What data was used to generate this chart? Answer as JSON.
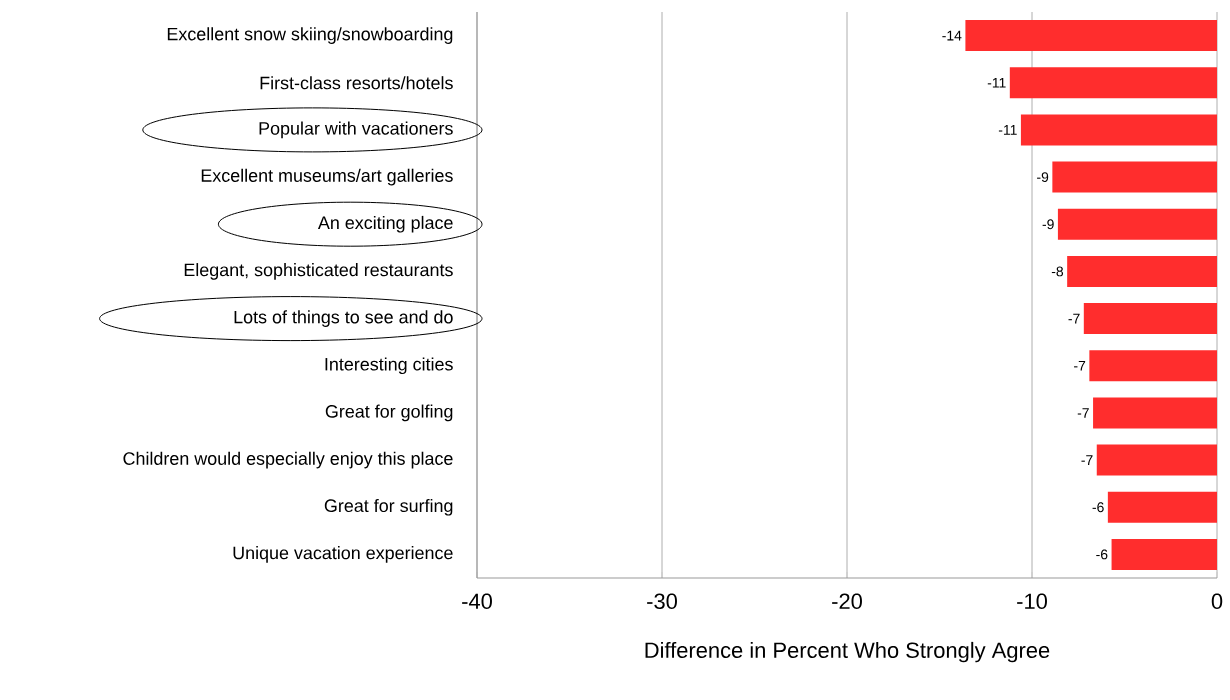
{
  "chart_data": {
    "type": "bar",
    "orientation": "horizontal",
    "xlabel": "Difference in Percent Who Strongly Agree",
    "categories": [
      "Excellent snow skiing/snowboarding",
      "First-class resorts/hotels",
      "Popular with vacationers",
      "Excellent museums/art galleries",
      "An exciting place",
      "Elegant, sophisticated restaurants",
      "Lots of things to see and do",
      "Interesting cities",
      "Great for golfing",
      "Children would especially enjoy this place",
      "Great for surfing",
      "Unique vacation experience"
    ],
    "values": [
      -13.6,
      -11.2,
      -10.6,
      -8.9,
      -8.6,
      -8.1,
      -7.2,
      -6.9,
      -6.7,
      -6.5,
      -5.9,
      -5.7
    ],
    "value_labels": [
      "-14",
      "-11",
      "-11",
      "-9",
      "-9",
      "-8",
      "-7",
      "-7",
      "-7",
      "-7",
      "-6",
      "-6"
    ],
    "color": "#ff2d2d",
    "xlim": [
      -40,
      0
    ],
    "xticks": [
      -40,
      -30,
      -20,
      -10,
      0
    ],
    "grid": "x"
  }
}
